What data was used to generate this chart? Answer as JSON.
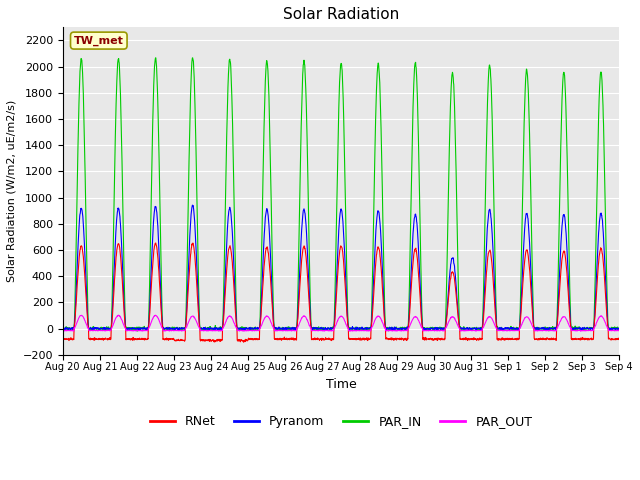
{
  "title": "Solar Radiation",
  "ylabel": "Solar Radiation (W/m2, uE/m2/s)",
  "xlabel": "Time",
  "ylim": [
    -200,
    2300
  ],
  "yticks": [
    -200,
    0,
    200,
    400,
    600,
    800,
    1000,
    1200,
    1400,
    1600,
    1800,
    2000,
    2200
  ],
  "station_label": "TW_met",
  "legend_entries": [
    "RNet",
    "Pyranom",
    "PAR_IN",
    "PAR_OUT"
  ],
  "line_colors": [
    "#ff0000",
    "#0000ff",
    "#00cc00",
    "#ff00ff"
  ],
  "plot_bg_color": "#e8e8e8",
  "fig_bg_color": "#ffffff",
  "n_days": 15,
  "day_labels": [
    "Aug 20",
    "Aug 21",
    "Aug 22",
    "Aug 23",
    "Aug 24",
    "Aug 25",
    "Aug 26",
    "Aug 27",
    "Aug 28",
    "Aug 29",
    "Aug 30",
    "Aug 31",
    "Sep 1",
    "Sep 2",
    "Sep 3",
    "Sep 4"
  ],
  "rnet_peaks": [
    630,
    650,
    650,
    650,
    630,
    620,
    630,
    630,
    620,
    610,
    430,
    600,
    600,
    590,
    610
  ],
  "rnet_nights": [
    -80,
    -80,
    -80,
    -90,
    -90,
    -80,
    -80,
    -80,
    -80,
    -80,
    -80,
    -80,
    -80,
    -80,
    -80
  ],
  "pyranom_peaks": [
    920,
    920,
    930,
    940,
    920,
    910,
    910,
    910,
    900,
    870,
    540,
    910,
    880,
    870,
    880
  ],
  "par_in_peaks": [
    2060,
    2060,
    2070,
    2070,
    2060,
    2040,
    2040,
    2030,
    2020,
    2030,
    1950,
    2010,
    1970,
    1960,
    1960
  ],
  "par_out_peaks": [
    100,
    100,
    100,
    95,
    95,
    95,
    95,
    95,
    95,
    90,
    90,
    90,
    90,
    90,
    95
  ],
  "par_out_nights": [
    -15,
    -15,
    -15,
    -15,
    -15,
    -15,
    -15,
    -15,
    -15,
    -15,
    -15,
    -15,
    -15,
    -15,
    -15
  ]
}
